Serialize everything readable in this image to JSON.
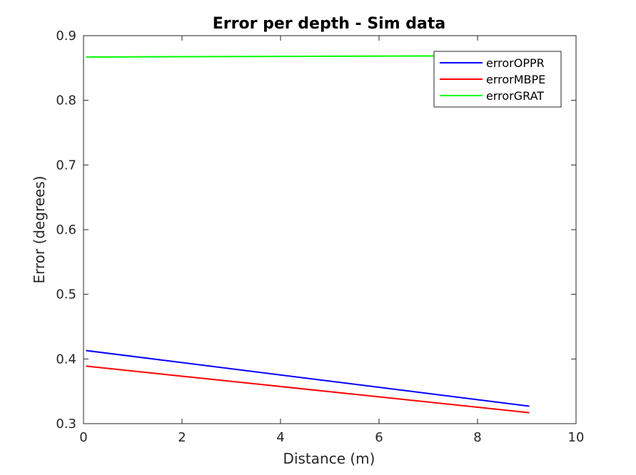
{
  "chart_data": {
    "type": "line",
    "title": "Error per depth  - Sim data",
    "xlabel": "Distance (m)",
    "ylabel": "Error (degrees)",
    "xlim": [
      0,
      10
    ],
    "ylim": [
      0.3,
      0.9
    ],
    "xticks": [
      0,
      2,
      4,
      6,
      8,
      10
    ],
    "yticks": [
      0.3,
      0.4,
      0.5,
      0.6,
      0.7,
      0.8,
      0.9
    ],
    "grid": false,
    "legend_position": "top-right",
    "series": [
      {
        "name": "errorOPPR",
        "color": "#0000ff",
        "x": [
          0.05,
          9.05
        ],
        "y": [
          0.413,
          0.327
        ]
      },
      {
        "name": "errorMBPE",
        "color": "#ff0000",
        "x": [
          0.05,
          9.05
        ],
        "y": [
          0.389,
          0.317
        ]
      },
      {
        "name": "errorGRAT",
        "color": "#00ff00",
        "x": [
          0.05,
          9.05
        ],
        "y": [
          0.867,
          0.869
        ]
      }
    ]
  }
}
